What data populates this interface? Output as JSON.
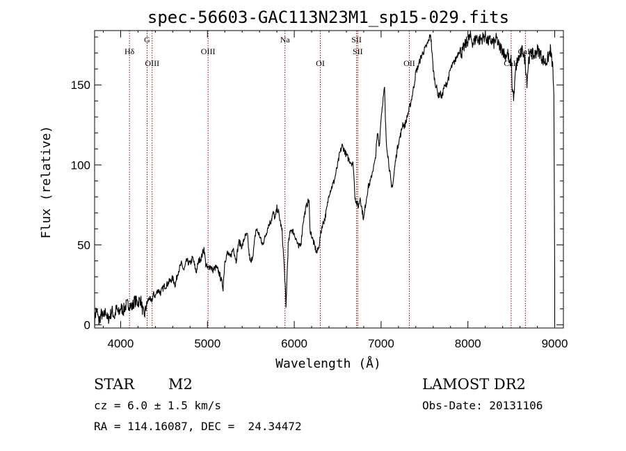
{
  "chart_data": {
    "type": "line",
    "title": "spec-56603-GAC113N23M1_sp15-029.fits",
    "xlabel": "Wavelength (Å)",
    "ylabel": "Flux (relative)",
    "xlim": [
      3700,
      9100
    ],
    "ylim": [
      -2,
      184
    ],
    "xticks": [
      4000,
      5000,
      6000,
      7000,
      8000,
      9000
    ],
    "yticks": [
      0,
      50,
      100,
      150
    ],
    "grid": false,
    "line_color": "#000000",
    "marker_color": "#8b0000",
    "series": [
      {
        "points": [
          [
            3700,
            3
          ],
          [
            3720,
            10
          ],
          [
            3750,
            2
          ],
          [
            3780,
            7
          ],
          [
            3800,
            4
          ],
          [
            3830,
            9
          ],
          [
            3850,
            3
          ],
          [
            3880,
            6
          ],
          [
            3900,
            9
          ],
          [
            3930,
            5
          ],
          [
            3950,
            10
          ],
          [
            3980,
            7
          ],
          [
            4000,
            11
          ],
          [
            4030,
            9
          ],
          [
            4060,
            12
          ],
          [
            4100,
            13
          ],
          [
            4130,
            11
          ],
          [
            4160,
            15
          ],
          [
            4200,
            14
          ],
          [
            4230,
            16
          ],
          [
            4250,
            10
          ],
          [
            4270,
            5
          ],
          [
            4300,
            13
          ],
          [
            4330,
            17
          ],
          [
            4350,
            14
          ],
          [
            4380,
            19
          ],
          [
            4400,
            18
          ],
          [
            4430,
            22
          ],
          [
            4460,
            20
          ],
          [
            4500,
            24
          ],
          [
            4530,
            25
          ],
          [
            4560,
            27
          ],
          [
            4600,
            29
          ],
          [
            4630,
            25
          ],
          [
            4660,
            33
          ],
          [
            4700,
            38
          ],
          [
            4730,
            34
          ],
          [
            4760,
            40
          ],
          [
            4800,
            38
          ],
          [
            4830,
            42
          ],
          [
            4870,
            33
          ],
          [
            4900,
            40
          ],
          [
            4930,
            42
          ],
          [
            4960,
            48
          ],
          [
            4980,
            38
          ],
          [
            5000,
            35
          ],
          [
            5030,
            37
          ],
          [
            5060,
            34
          ],
          [
            5100,
            36
          ],
          [
            5130,
            33
          ],
          [
            5160,
            28
          ],
          [
            5180,
            23
          ],
          [
            5200,
            40
          ],
          [
            5230,
            45
          ],
          [
            5260,
            42
          ],
          [
            5300,
            48
          ],
          [
            5330,
            40
          ],
          [
            5360,
            52
          ],
          [
            5400,
            49
          ],
          [
            5430,
            55
          ],
          [
            5460,
            56
          ],
          [
            5480,
            44
          ],
          [
            5500,
            38
          ],
          [
            5530,
            46
          ],
          [
            5560,
            60
          ],
          [
            5600,
            56
          ],
          [
            5630,
            50
          ],
          [
            5660,
            54
          ],
          [
            5700,
            62
          ],
          [
            5730,
            65
          ],
          [
            5760,
            70
          ],
          [
            5780,
            66
          ],
          [
            5800,
            73
          ],
          [
            5820,
            70
          ],
          [
            5840,
            64
          ],
          [
            5860,
            58
          ],
          [
            5880,
            40
          ],
          [
            5895,
            25
          ],
          [
            5905,
            10
          ],
          [
            5915,
            28
          ],
          [
            5930,
            50
          ],
          [
            5960,
            60
          ],
          [
            5990,
            58
          ],
          [
            6020,
            54
          ],
          [
            6050,
            48
          ],
          [
            6080,
            52
          ],
          [
            6100,
            64
          ],
          [
            6130,
            72
          ],
          [
            6150,
            76
          ],
          [
            6170,
            78
          ],
          [
            6180,
            60
          ],
          [
            6200,
            56
          ],
          [
            6230,
            50
          ],
          [
            6260,
            45
          ],
          [
            6280,
            48
          ],
          [
            6300,
            55
          ],
          [
            6320,
            62
          ],
          [
            6350,
            66
          ],
          [
            6380,
            74
          ],
          [
            6400,
            82
          ],
          [
            6430,
            86
          ],
          [
            6460,
            90
          ],
          [
            6480,
            95
          ],
          [
            6500,
            100
          ],
          [
            6520,
            106
          ],
          [
            6550,
            112
          ],
          [
            6570,
            110
          ],
          [
            6600,
            106
          ],
          [
            6620,
            104
          ],
          [
            6650,
            102
          ],
          [
            6680,
            100
          ],
          [
            6700,
            80
          ],
          [
            6720,
            76
          ],
          [
            6740,
            74
          ],
          [
            6760,
            80
          ],
          [
            6780,
            72
          ],
          [
            6800,
            66
          ],
          [
            6820,
            75
          ],
          [
            6850,
            86
          ],
          [
            6880,
            90
          ],
          [
            6900,
            96
          ],
          [
            6930,
            102
          ],
          [
            6960,
            120
          ],
          [
            6980,
            112
          ],
          [
            7000,
            130
          ],
          [
            7020,
            140
          ],
          [
            7040,
            148
          ],
          [
            7050,
            128
          ],
          [
            7060,
            115
          ],
          [
            7080,
            105
          ],
          [
            7100,
            96
          ],
          [
            7120,
            85
          ],
          [
            7140,
            90
          ],
          [
            7160,
            100
          ],
          [
            7180,
            108
          ],
          [
            7200,
            114
          ],
          [
            7230,
            120
          ],
          [
            7250,
            126
          ],
          [
            7270,
            124
          ],
          [
            7300,
            130
          ],
          [
            7330,
            136
          ],
          [
            7360,
            144
          ],
          [
            7380,
            150
          ],
          [
            7400,
            158
          ],
          [
            7430,
            162
          ],
          [
            7450,
            166
          ],
          [
            7480,
            170
          ],
          [
            7500,
            172
          ],
          [
            7530,
            175
          ],
          [
            7550,
            178
          ],
          [
            7570,
            182
          ],
          [
            7590,
            168
          ],
          [
            7600,
            160
          ],
          [
            7620,
            152
          ],
          [
            7640,
            148
          ],
          [
            7660,
            143
          ],
          [
            7680,
            145
          ],
          [
            7700,
            142
          ],
          [
            7720,
            148
          ],
          [
            7750,
            150
          ],
          [
            7780,
            155
          ],
          [
            7800,
            160
          ],
          [
            7830,
            163
          ],
          [
            7860,
            166
          ],
          [
            7900,
            172
          ],
          [
            7930,
            170
          ],
          [
            7960,
            174
          ],
          [
            8000,
            178
          ],
          [
            8030,
            180
          ],
          [
            8060,
            176
          ],
          [
            8100,
            180
          ],
          [
            8130,
            178
          ],
          [
            8160,
            179
          ],
          [
            8200,
            181
          ],
          [
            8230,
            177
          ],
          [
            8260,
            178
          ],
          [
            8300,
            176
          ],
          [
            8330,
            179
          ],
          [
            8360,
            174
          ],
          [
            8400,
            172
          ],
          [
            8430,
            168
          ],
          [
            8460,
            170
          ],
          [
            8480,
            162
          ],
          [
            8500,
            166
          ],
          [
            8510,
            148
          ],
          [
            8530,
            142
          ],
          [
            8550,
            160
          ],
          [
            8570,
            165
          ],
          [
            8600,
            168
          ],
          [
            8630,
            172
          ],
          [
            8660,
            165
          ],
          [
            8680,
            152
          ],
          [
            8700,
            166
          ],
          [
            8730,
            170
          ],
          [
            8760,
            168
          ],
          [
            8800,
            172
          ],
          [
            8830,
            170
          ],
          [
            8860,
            166
          ],
          [
            8900,
            164
          ],
          [
            8930,
            168
          ],
          [
            8950,
            172
          ],
          [
            8980,
            160
          ],
          [
            8990,
            140
          ],
          [
            9000,
            30
          ]
        ]
      }
    ],
    "lines": [
      {
        "label": "Hδ",
        "x": 4102,
        "row": "a"
      },
      {
        "label": "G",
        "x": 4305,
        "row": "top"
      },
      {
        "label": "OIII",
        "x": 4363,
        "row": "b"
      },
      {
        "label": "OIII",
        "x": 5007,
        "row": "a"
      },
      {
        "label": "Na",
        "x": 5893,
        "row": "top"
      },
      {
        "label": "OI",
        "x": 6300,
        "row": "b"
      },
      {
        "label": "SII",
        "x": 6717,
        "row": "top"
      },
      {
        "label": "SII",
        "x": 6731,
        "row": "a"
      },
      {
        "label": "OII",
        "x": 7325,
        "row": "b"
      },
      {
        "label": "CaII",
        "x": 8498,
        "row": "b"
      },
      {
        "label": "CaII",
        "x": 8662,
        "row": "a"
      }
    ]
  },
  "info": {
    "class": "STAR",
    "subclass": "M2",
    "cz": "cz = 6.0 ± 1.5 km/s",
    "coords": "RA = 114.16087, DEC =  24.34472",
    "survey": "LAMOST DR2",
    "obs_date": "Obs-Date: 20131106"
  }
}
